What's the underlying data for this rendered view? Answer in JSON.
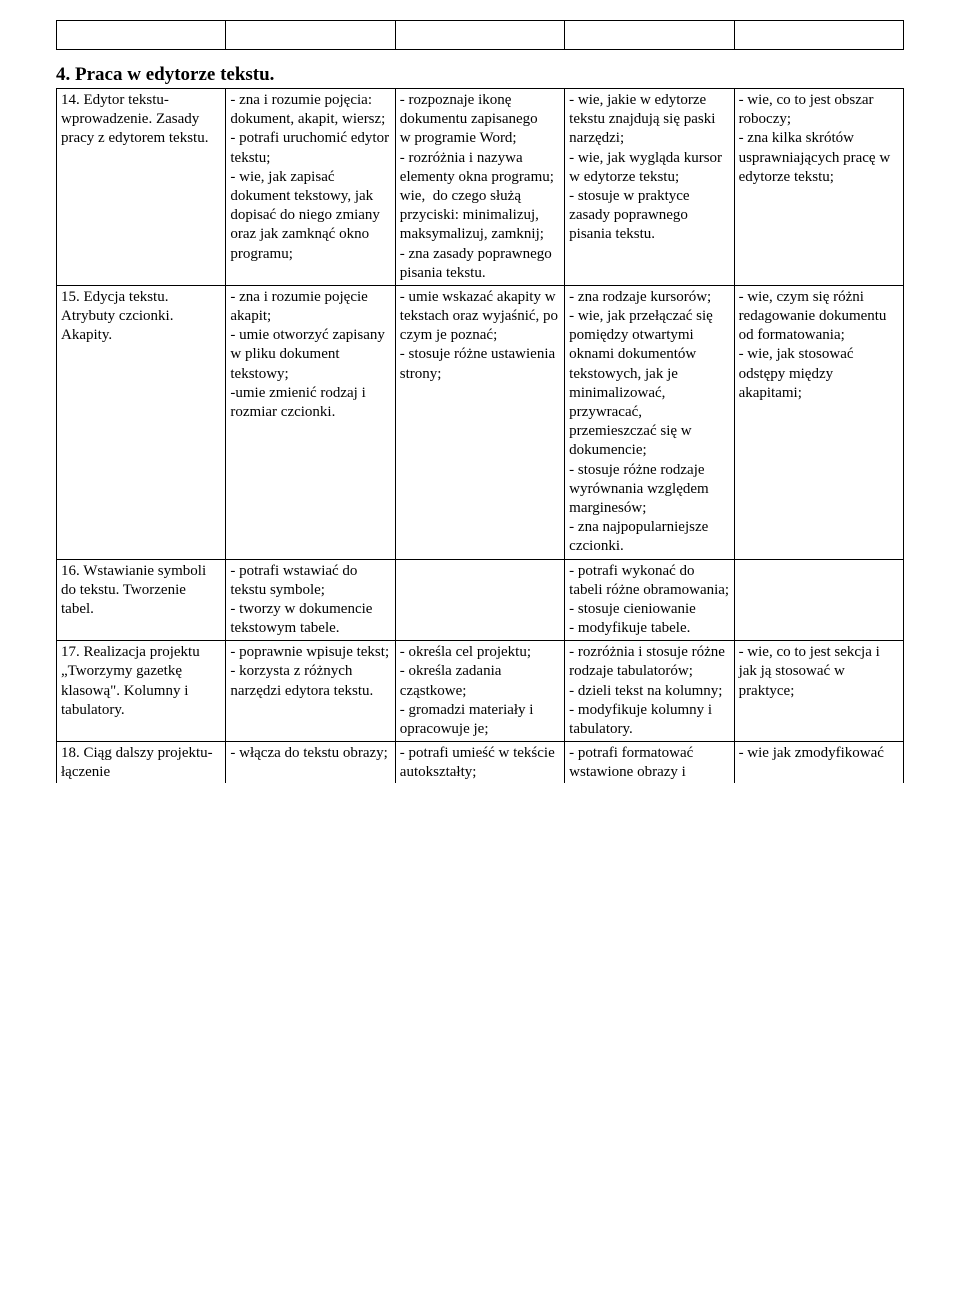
{
  "topTable": {
    "cells": [
      "",
      "",
      "",
      "",
      ""
    ]
  },
  "sectionTitle": "4. Praca w edytorze tekstu.",
  "colWidths": [
    "20%",
    "20%",
    "20%",
    "20%",
    "20%"
  ],
  "rows": [
    {
      "c1": "14. Edytor tekstu- wprowadzenie. Zasady pracy z edytorem tekstu.",
      "c2": "- zna i rozumie pojęcia: dokument, akapit, wiersz;\n- potrafi uruchomić edytor tekstu;\n- wie, jak zapisać dokument tekstowy, jak dopisać do niego zmiany oraz jak zamknąć okno programu;",
      "c3": "- rozpoznaje ikonę dokumentu zapisanego\nw programie Word;\n- rozróżnia i nazywa elementy okna programu;\nwie,  do czego służą przyciski: minimalizuj, maksymalizuj, zamknij;\n- zna zasady poprawnego pisania tekstu.",
      "c4": "- wie, jakie w edytorze tekstu znajdują się paski narzędzi;\n- wie, jak wygląda kursor w edytorze tekstu;\n- stosuje w praktyce zasady poprawnego pisania tekstu.",
      "c5": "- wie, co to jest obszar roboczy;\n- zna kilka skrótów usprawniających pracę w edytorze tekstu;"
    },
    {
      "c1": "15. Edycja tekstu. Atrybuty czcionki. Akapity.",
      "c2": "- zna i rozumie pojęcie akapit;\n- umie otworzyć zapisany w pliku dokument tekstowy;\n-umie zmienić rodzaj i rozmiar czcionki.",
      "c3": "- umie wskazać akapity w tekstach oraz wyjaśnić, po czym je poznać;\n- stosuje różne ustawienia strony;",
      "c4": "- zna rodzaje kursorów;\n- wie, jak przełączać się pomiędzy otwartymi oknami dokumentów tekstowych, jak je minimalizować, przywracać, przemieszczać się w dokumencie;\n- stosuje różne rodzaje wyrównania względem marginesów;\n- zna najpopularniejsze czcionki.",
      "c5": "- wie, czym się różni redagowanie dokumentu\nod formatowania;\n- wie, jak stosować odstępy między akapitami;"
    },
    {
      "c1": "16. Wstawianie symboli do tekstu. Tworzenie tabel.",
      "c2": "- potrafi wstawiać do tekstu symbole;\n- tworzy w dokumencie tekstowym tabele.",
      "c3": "",
      "c4": "- potrafi wykonać do tabeli różne obramowania;\n- stosuje cieniowanie\n- modyfikuje tabele.",
      "c5": ""
    },
    {
      "c1": "17. Realizacja projektu „Tworzymy gazetkę klasową\". Kolumny i tabulatory.",
      "c2": "- poprawnie wpisuje tekst;\n- korzysta z różnych narzędzi edytora tekstu.",
      "c3": "- określa cel projektu;\n- określa zadania cząstkowe;\n- gromadzi materiały i opracowuje je;",
      "c4": "- rozróżnia i stosuje różne rodzaje tabulatorów;\n- dzieli tekst na kolumny;\n- modyfikuje kolumny i tabulatory.",
      "c5": "- wie, co to jest sekcja i jak ją stosować w praktyce;"
    },
    {
      "c1": "18. Ciąg dalszy projektu-łączenie",
      "c2": "- włącza do tekstu obrazy;",
      "c3": "- potrafi umieść w tekście autokształty;",
      "c4": "- potrafi formatować wstawione obrazy i",
      "c5": "- wie jak zmodyfikować",
      "lastRow": true
    }
  ]
}
